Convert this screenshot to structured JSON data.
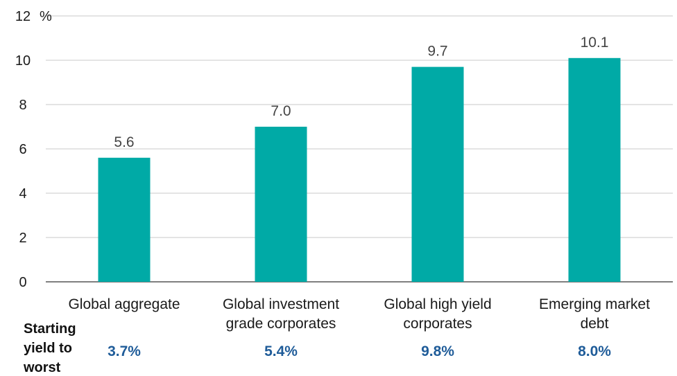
{
  "chart_data": {
    "type": "bar",
    "ylabel": "%",
    "ylim": [
      0,
      12
    ],
    "yticks": [
      0,
      2,
      4,
      6,
      8,
      10,
      12
    ],
    "grid": true,
    "categories": [
      [
        "Global aggregate"
      ],
      [
        "Global investment",
        "grade corporates"
      ],
      [
        "Global high yield",
        "corporates"
      ],
      [
        "Emerging market",
        "debt"
      ]
    ],
    "values": [
      5.6,
      7.0,
      9.7,
      10.1
    ],
    "data_labels": [
      "5.6",
      "7.0",
      "9.7",
      "10.1"
    ],
    "bar_color": "#00aaa6",
    "starting_yield": {
      "label_lines": [
        "Starting",
        "yield to",
        "worst"
      ],
      "values": [
        "3.7%",
        "5.4%",
        "9.8%",
        "8.0%"
      ],
      "color": "#1f5c99"
    }
  }
}
